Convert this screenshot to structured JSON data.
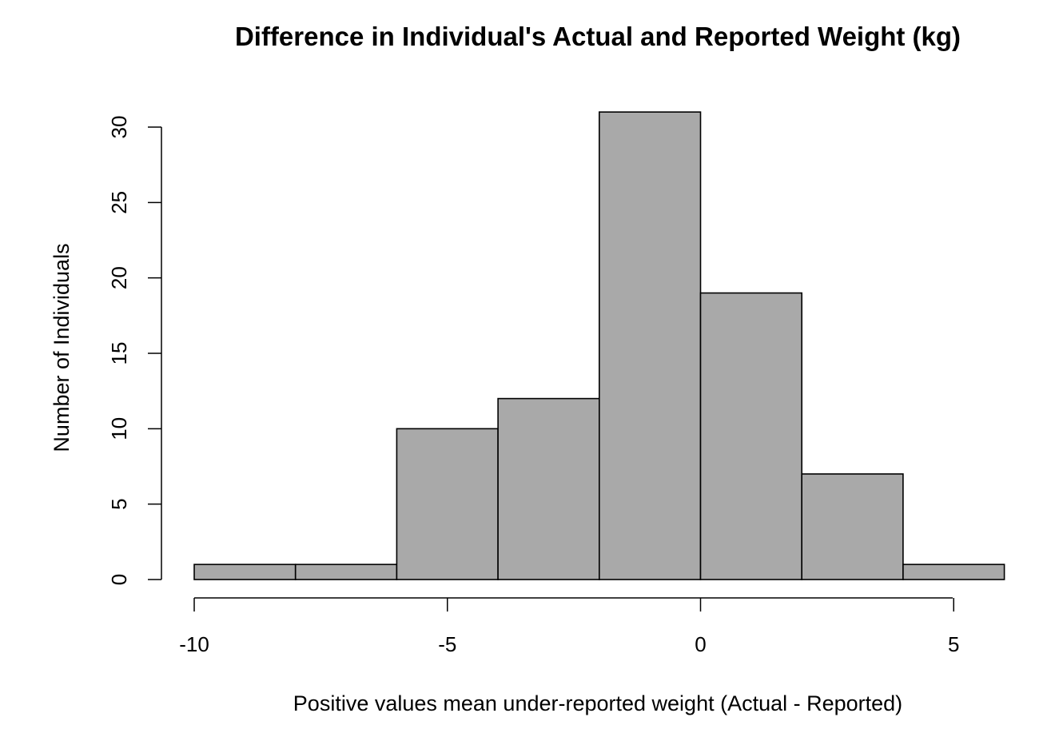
{
  "chart_data": {
    "type": "bar",
    "title": "Difference in Individual's Actual and Reported Weight (kg)",
    "xlabel": "Positive values mean under-reported weight (Actual - Reported)",
    "ylabel": "Number of Individuals",
    "bins": [
      {
        "x0": -10,
        "x1": -8,
        "count": 1
      },
      {
        "x0": -8,
        "x1": -6,
        "count": 1
      },
      {
        "x0": -6,
        "x1": -4,
        "count": 10
      },
      {
        "x0": -4,
        "x1": -2,
        "count": 12
      },
      {
        "x0": -2,
        "x1": 0,
        "count": 31
      },
      {
        "x0": 0,
        "x1": 2,
        "count": 19
      },
      {
        "x0": 2,
        "x1": 4,
        "count": 7
      },
      {
        "x0": 4,
        "x1": 6,
        "count": 1
      }
    ],
    "xticks": [
      -10,
      -5,
      0,
      5
    ],
    "yticks": [
      0,
      5,
      10,
      15,
      20,
      25,
      30
    ],
    "xlim": [
      -10,
      6
    ],
    "ylim": [
      0,
      31
    ],
    "bar_color": "#a9a9a9",
    "edge_color": "#000000",
    "grid": false
  }
}
